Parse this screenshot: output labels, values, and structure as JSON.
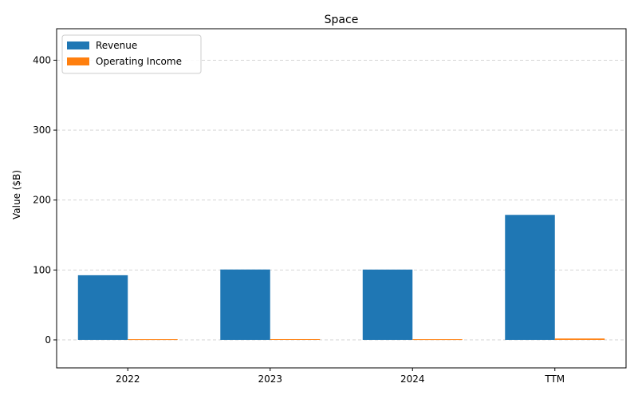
{
  "chart_data": {
    "type": "bar",
    "title": "Space",
    "xlabel": "",
    "ylabel": "Value ($B)",
    "categories": [
      "2022",
      "2023",
      "2024",
      "TTM"
    ],
    "series": [
      {
        "name": "Revenue",
        "color": "#1f77b4",
        "values": [
          92.5,
          100.7,
          100.6,
          178.8
        ]
      },
      {
        "name": "Operating Income",
        "color": "#ff7f0e",
        "values": [
          1.0,
          1.1,
          1.0,
          2.0
        ]
      }
    ],
    "ylim": [
      -40,
      445
    ],
    "yticks": [
      0,
      100,
      200,
      300,
      400
    ],
    "grid": "y-dashed",
    "legend_position": "top-left"
  }
}
